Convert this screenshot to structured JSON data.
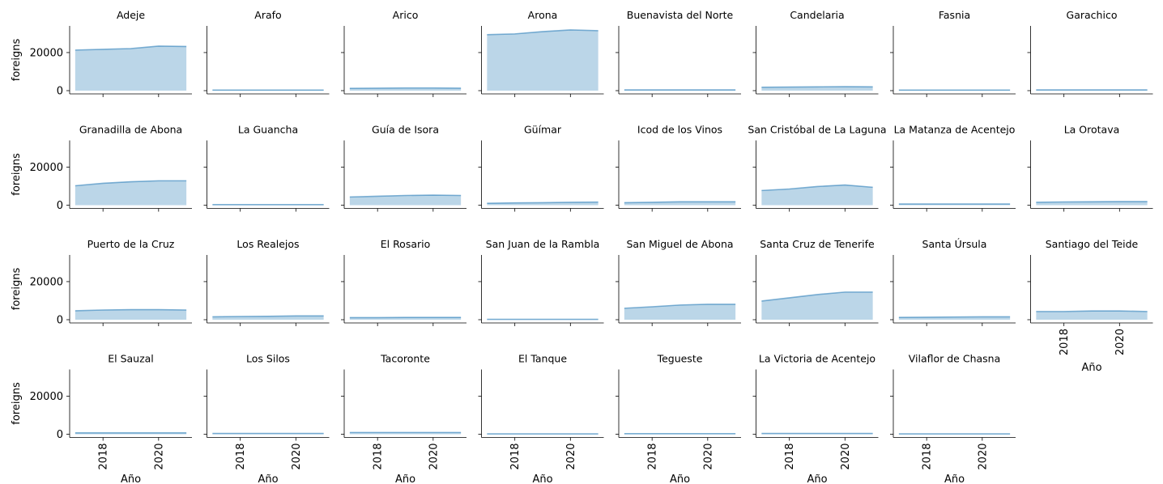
{
  "chart_data": {
    "type": "area",
    "xlabel": "Año",
    "ylabel": "foreigns",
    "color": "#1f77b4",
    "x": [
      2017,
      2018,
      2019,
      2020,
      2021
    ],
    "xlim": [
      2016.8,
      2021.2
    ],
    "xticks": [
      2018,
      2020
    ],
    "ylim": [
      -1700,
      34000
    ],
    "yticks": [
      0,
      20000
    ],
    "columns": 8,
    "facets": [
      {
        "title": "Adeje",
        "values": [
          21300,
          21700,
          22100,
          23400,
          23200
        ]
      },
      {
        "title": "Arafo",
        "values": [
          300,
          300,
          300,
          300,
          300
        ]
      },
      {
        "title": "Arico",
        "values": [
          1200,
          1300,
          1400,
          1400,
          1300
        ]
      },
      {
        "title": "Arona",
        "values": [
          29400,
          29800,
          31000,
          31900,
          31500
        ]
      },
      {
        "title": "Buenavista del Norte",
        "values": [
          400,
          400,
          400,
          400,
          400
        ]
      },
      {
        "title": "Candelaria",
        "values": [
          1800,
          1900,
          2000,
          2100,
          2000
        ]
      },
      {
        "title": "Fasnia",
        "values": [
          300,
          300,
          300,
          300,
          300
        ]
      },
      {
        "title": "Garachico",
        "values": [
          400,
          400,
          400,
          400,
          400
        ]
      },
      {
        "title": "Granadilla de Abona",
        "values": [
          10200,
          11500,
          12300,
          12800,
          12800
        ]
      },
      {
        "title": "La Guancha",
        "values": [
          300,
          300,
          300,
          300,
          300
        ]
      },
      {
        "title": "Guía de Isora",
        "values": [
          4300,
          4700,
          5100,
          5300,
          5100
        ]
      },
      {
        "title": "Güímar",
        "values": [
          1000,
          1200,
          1300,
          1500,
          1600
        ]
      },
      {
        "title": "Icod de los Vinos",
        "values": [
          1300,
          1500,
          1800,
          1800,
          1800
        ]
      },
      {
        "title": "San Cristóbal de La Laguna",
        "values": [
          7700,
          8500,
          9800,
          10600,
          9400
        ]
      },
      {
        "title": "La Matanza de Acentejo",
        "values": [
          600,
          600,
          600,
          600,
          600
        ]
      },
      {
        "title": "La Orotava",
        "values": [
          1500,
          1700,
          1800,
          1900,
          1900
        ]
      },
      {
        "title": "Puerto de la Cruz",
        "values": [
          4700,
          5100,
          5300,
          5300,
          5100
        ]
      },
      {
        "title": "Los Realejos",
        "values": [
          1500,
          1700,
          1800,
          2000,
          2000
        ]
      },
      {
        "title": "El Rosario",
        "values": [
          1100,
          1100,
          1200,
          1200,
          1200
        ]
      },
      {
        "title": "San Juan de la Rambla",
        "values": [
          200,
          200,
          200,
          200,
          200
        ]
      },
      {
        "title": "San Miguel de Abona",
        "values": [
          6000,
          6800,
          7700,
          8100,
          8100
        ]
      },
      {
        "title": "Santa Cruz de Tenerife",
        "values": [
          9800,
          11500,
          13200,
          14500,
          14500
        ]
      },
      {
        "title": "Santa Úrsula",
        "values": [
          1200,
          1300,
          1400,
          1500,
          1500
        ]
      },
      {
        "title": "Santiago del Teide",
        "values": [
          4300,
          4300,
          4600,
          4600,
          4300
        ]
      },
      {
        "title": "El Sauzal",
        "values": [
          700,
          700,
          700,
          700,
          700
        ]
      },
      {
        "title": "Los Silos",
        "values": [
          400,
          400,
          400,
          400,
          400
        ]
      },
      {
        "title": "Tacoronte",
        "values": [
          900,
          900,
          900,
          900,
          900
        ]
      },
      {
        "title": "El Tanque",
        "values": [
          200,
          200,
          200,
          200,
          200
        ]
      },
      {
        "title": "Tegueste",
        "values": [
          300,
          300,
          300,
          300,
          300
        ]
      },
      {
        "title": "La Victoria de Acentejo",
        "values": [
          400,
          400,
          400,
          400,
          400
        ]
      },
      {
        "title": "Vilaflor de Chasna",
        "values": [
          200,
          200,
          200,
          200,
          200
        ]
      }
    ]
  }
}
